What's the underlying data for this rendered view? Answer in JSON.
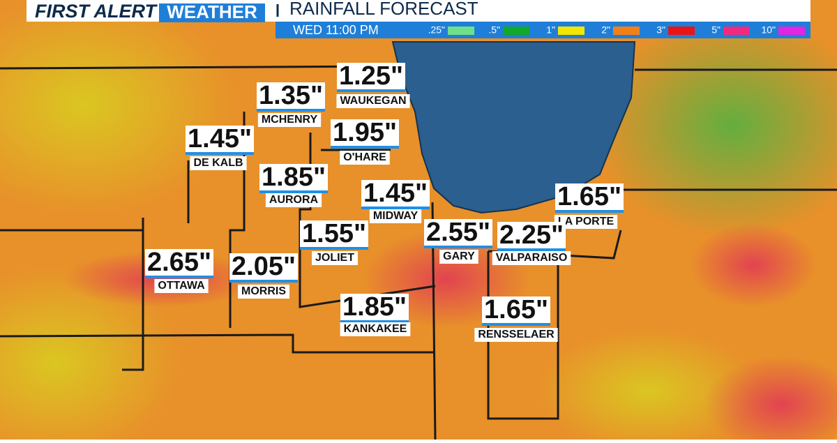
{
  "header": {
    "brand_first": "FIRST ALERT",
    "brand_second": "WEATHER",
    "title": "RAINFALL FORECAST",
    "time": "WED 11:00 PM"
  },
  "legend": [
    {
      "label": ".25\"",
      "color": "#6fe08a"
    },
    {
      "label": ".5\"",
      "color": "#12a82a"
    },
    {
      "label": "1\"",
      "color": "#f4e600"
    },
    {
      "label": "2\"",
      "color": "#f28018"
    },
    {
      "label": "3\"",
      "color": "#ea1414"
    },
    {
      "label": "5\"",
      "color": "#f02a80"
    },
    {
      "label": "10\"",
      "color": "#e026e0"
    }
  ],
  "locations": [
    {
      "amount": "1.25\"",
      "name": "WAUKEGAN"
    },
    {
      "amount": "1.35\"",
      "name": "MCHENRY"
    },
    {
      "amount": "1.45\"",
      "name": "DE KALB"
    },
    {
      "amount": "1.95\"",
      "name": "O'HARE"
    },
    {
      "amount": "1.85\"",
      "name": "AURORA"
    },
    {
      "amount": "1.45\"",
      "name": "MIDWAY"
    },
    {
      "amount": "1.65\"",
      "name": "LA PORTE"
    },
    {
      "amount": "1.55\"",
      "name": "JOLIET"
    },
    {
      "amount": "2.55\"",
      "name": "GARY"
    },
    {
      "amount": "2.25\"",
      "name": "VALPARAISO"
    },
    {
      "amount": "2.65\"",
      "name": "OTTAWA"
    },
    {
      "amount": "2.05\"",
      "name": "MORRIS"
    },
    {
      "amount": "1.85\"",
      "name": "KANKAKEE"
    },
    {
      "amount": "1.65\"",
      "name": "RENSSELAER"
    }
  ]
}
